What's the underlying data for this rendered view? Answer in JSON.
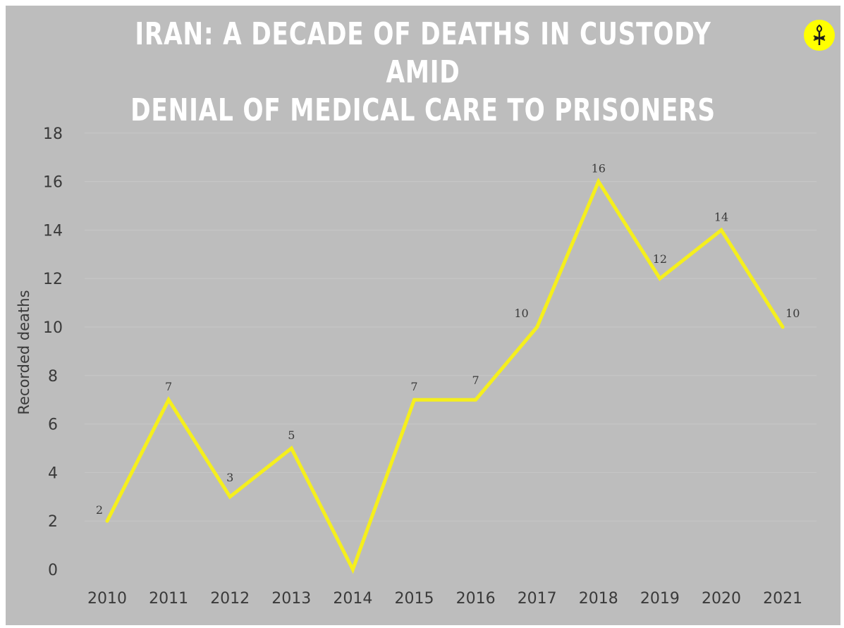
{
  "header": {
    "title_line1": "IRAN: A DECADE OF DEATHS IN CUSTODY AMID",
    "title_line2": "DENIAL OF MEDICAL CARE TO PRISONERS",
    "logo_icon": "amnesty-candle-logo-icon"
  },
  "colors": {
    "background": "#bdbdbd",
    "line": "#f5ef1d",
    "title": "#ffffff",
    "gridline": "#c7c7c7",
    "text": "#3a3a3a",
    "logo_bg": "#ffff00"
  },
  "chart_data": {
    "type": "line",
    "title": "IRAN: A DECADE OF DEATHS IN CUSTODY AMID DENIAL OF MEDICAL CARE TO PRISONERS",
    "xlabel": "",
    "ylabel": "Recorded deaths",
    "categories": [
      "2010",
      "2011",
      "2012",
      "2013",
      "2014",
      "2015",
      "2016",
      "2017",
      "2018",
      "2019",
      "2020",
      "2021"
    ],
    "series": [
      {
        "values": [
          2,
          7,
          3,
          5,
          0,
          7,
          7,
          10,
          16,
          12,
          14,
          10
        ],
        "labels": [
          "2",
          "7",
          "3",
          "5",
          "",
          "7",
          "7",
          "10",
          "16",
          "12",
          "14",
          "10"
        ]
      }
    ],
    "ylim": [
      0,
      18
    ],
    "yticks": [
      "0",
      "2",
      "4",
      "6",
      "8",
      "10",
      "12",
      "14",
      "16",
      "18"
    ],
    "grid": true,
    "legend": "none"
  }
}
